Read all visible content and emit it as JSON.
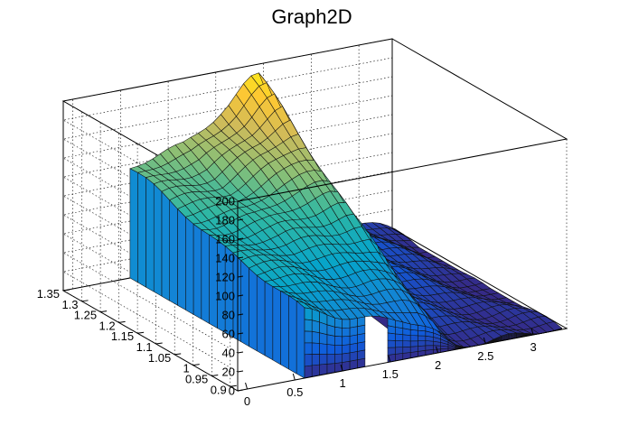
{
  "chart_data": {
    "type": "surface",
    "title": "Graph2D",
    "xlabel": "",
    "ylabel": "",
    "zlabel": "",
    "xlim": [
      -0.1,
      3.35
    ],
    "ylim": [
      0.88,
      1.35
    ],
    "zlim": [
      0,
      200
    ],
    "x_ticks": [
      "0",
      "0.5",
      "1",
      "1.5",
      "2",
      "2.5",
      "3"
    ],
    "y_ticks": [
      "0.9",
      "0.95",
      "1",
      "1.05",
      "1.1",
      "1.15",
      "1.2",
      "1.25",
      "1.3",
      "1.35"
    ],
    "z_ticks": [
      "0",
      "20",
      "40",
      "60",
      "80",
      "100",
      "120",
      "140",
      "160",
      "180",
      "200"
    ],
    "grid": true,
    "palette": [
      "#352a87",
      "#0f5cdd",
      "#1481d6",
      "#06a4ca",
      "#2eb7a4",
      "#87bf77",
      "#d1bb59",
      "#fec832",
      "#f9fb0e"
    ],
    "surface_profile_x": [
      0.6,
      1.15,
      1.65,
      1.85,
      2.0,
      2.2,
      3.3
    ],
    "surface_profile_z_at_y_max": [
      115,
      130,
      165,
      185,
      190,
      45,
      0
    ],
    "surface_profile_z_at_y_min": [
      70,
      55,
      40,
      30,
      20,
      5,
      0
    ],
    "gap_x_range": [
      1.2,
      1.45
    ]
  }
}
